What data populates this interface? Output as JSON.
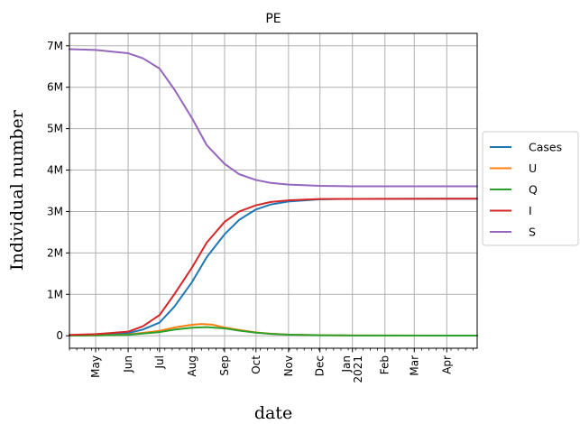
{
  "chart_data": {
    "type": "line",
    "title": "PE",
    "xlabel": "date",
    "ylabel": "Individual number",
    "x_range": [
      "2020-04-06",
      "2021-04-30"
    ],
    "ylim": [
      -300000,
      7300000
    ],
    "grid": true,
    "legend_position": "right",
    "y_ticks": [
      {
        "value": 0,
        "label": "0"
      },
      {
        "value": 1000000,
        "label": "1M"
      },
      {
        "value": 2000000,
        "label": "2M"
      },
      {
        "value": 3000000,
        "label": "3M"
      },
      {
        "value": 4000000,
        "label": "4M"
      },
      {
        "value": 5000000,
        "label": "5M"
      },
      {
        "value": 6000000,
        "label": "6M"
      },
      {
        "value": 7000000,
        "label": "7M"
      }
    ],
    "x_ticks": [
      {
        "date": "2020-05-01",
        "label": "May"
      },
      {
        "date": "2020-06-01",
        "label": "Jun"
      },
      {
        "date": "2020-07-01",
        "label": "Jul"
      },
      {
        "date": "2020-08-01",
        "label": "Aug"
      },
      {
        "date": "2020-09-01",
        "label": "Sep"
      },
      {
        "date": "2020-10-01",
        "label": "Oct"
      },
      {
        "date": "2020-11-01",
        "label": "Nov"
      },
      {
        "date": "2020-12-01",
        "label": "Dec"
      },
      {
        "date": "2021-01-01",
        "label": "Jan\n2021"
      },
      {
        "date": "2021-02-01",
        "label": "Feb"
      },
      {
        "date": "2021-03-01",
        "label": "Mar"
      },
      {
        "date": "2021-04-01",
        "label": "Apr"
      }
    ],
    "series": [
      {
        "name": "Cases",
        "color": "#1f77b4",
        "points": [
          [
            "2020-04-06",
            10000
          ],
          [
            "2020-05-01",
            25000
          ],
          [
            "2020-06-01",
            65000
          ],
          [
            "2020-06-15",
            150000
          ],
          [
            "2020-07-01",
            320000
          ],
          [
            "2020-07-15",
            700000
          ],
          [
            "2020-08-01",
            1300000
          ],
          [
            "2020-08-15",
            1900000
          ],
          [
            "2020-09-01",
            2450000
          ],
          [
            "2020-09-15",
            2800000
          ],
          [
            "2020-10-01",
            3050000
          ],
          [
            "2020-10-15",
            3170000
          ],
          [
            "2020-11-01",
            3240000
          ],
          [
            "2020-12-01",
            3295000
          ],
          [
            "2021-01-01",
            3305000
          ],
          [
            "2021-04-30",
            3310000
          ]
        ]
      },
      {
        "name": "U",
        "color": "#ff7f0e",
        "points": [
          [
            "2020-04-06",
            5000
          ],
          [
            "2020-05-01",
            10000
          ],
          [
            "2020-06-01",
            30000
          ],
          [
            "2020-07-01",
            120000
          ],
          [
            "2020-07-15",
            200000
          ],
          [
            "2020-08-01",
            265000
          ],
          [
            "2020-08-10",
            285000
          ],
          [
            "2020-08-20",
            270000
          ],
          [
            "2020-09-01",
            200000
          ],
          [
            "2020-09-15",
            140000
          ],
          [
            "2020-10-01",
            80000
          ],
          [
            "2020-10-15",
            50000
          ],
          [
            "2020-11-01",
            30000
          ],
          [
            "2020-12-01",
            15000
          ],
          [
            "2021-01-01",
            8000
          ],
          [
            "2021-04-30",
            5000
          ]
        ]
      },
      {
        "name": "Q",
        "color": "#2ca02c",
        "points": [
          [
            "2020-04-06",
            5000
          ],
          [
            "2020-05-01",
            10000
          ],
          [
            "2020-06-01",
            25000
          ],
          [
            "2020-07-01",
            90000
          ],
          [
            "2020-07-15",
            150000
          ],
          [
            "2020-08-01",
            195000
          ],
          [
            "2020-08-15",
            210000
          ],
          [
            "2020-09-01",
            180000
          ],
          [
            "2020-09-15",
            125000
          ],
          [
            "2020-10-01",
            75000
          ],
          [
            "2020-10-15",
            45000
          ],
          [
            "2020-11-01",
            28000
          ],
          [
            "2020-12-01",
            14000
          ],
          [
            "2021-01-01",
            8000
          ],
          [
            "2021-04-30",
            5000
          ]
        ]
      },
      {
        "name": "I",
        "color": "#d62728",
        "points": [
          [
            "2020-04-06",
            20000
          ],
          [
            "2020-05-01",
            40000
          ],
          [
            "2020-06-01",
            100000
          ],
          [
            "2020-06-15",
            230000
          ],
          [
            "2020-07-01",
            500000
          ],
          [
            "2020-07-15",
            1000000
          ],
          [
            "2020-08-01",
            1650000
          ],
          [
            "2020-08-15",
            2250000
          ],
          [
            "2020-09-01",
            2750000
          ],
          [
            "2020-09-15",
            3000000
          ],
          [
            "2020-10-01",
            3150000
          ],
          [
            "2020-10-15",
            3230000
          ],
          [
            "2020-11-01",
            3270000
          ],
          [
            "2020-12-01",
            3300000
          ],
          [
            "2021-01-01",
            3305000
          ],
          [
            "2021-04-30",
            3310000
          ]
        ]
      },
      {
        "name": "S",
        "color": "#9467bd",
        "points": [
          [
            "2020-04-06",
            6920000
          ],
          [
            "2020-05-01",
            6900000
          ],
          [
            "2020-06-01",
            6820000
          ],
          [
            "2020-06-15",
            6700000
          ],
          [
            "2020-07-01",
            6450000
          ],
          [
            "2020-07-15",
            5950000
          ],
          [
            "2020-08-01",
            5250000
          ],
          [
            "2020-08-15",
            4600000
          ],
          [
            "2020-09-01",
            4150000
          ],
          [
            "2020-09-15",
            3900000
          ],
          [
            "2020-10-01",
            3760000
          ],
          [
            "2020-10-15",
            3690000
          ],
          [
            "2020-11-01",
            3650000
          ],
          [
            "2020-12-01",
            3620000
          ],
          [
            "2021-01-01",
            3610000
          ],
          [
            "2021-04-30",
            3610000
          ]
        ]
      }
    ]
  }
}
